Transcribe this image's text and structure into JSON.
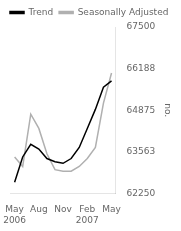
{
  "chart_data": {
    "type": "line",
    "y_label": "no.",
    "categories": [
      "May\n2006",
      null,
      null,
      "Aug",
      null,
      null,
      "Nov",
      null,
      null,
      "Feb\n2007",
      null,
      null,
      "May"
    ],
    "series": [
      {
        "name": "Trend",
        "color": "#000000",
        "values": [
          62600,
          63400,
          63800,
          63650,
          63350,
          63250,
          63200,
          63350,
          63700,
          64300,
          64900,
          65600,
          65800
        ]
      },
      {
        "name": "Seasonally Adjusted",
        "color": "#b0b0b0",
        "values": [
          63400,
          63100,
          64750,
          64300,
          63500,
          63000,
          62950,
          62950,
          63100,
          63350,
          63700,
          65100,
          66050
        ]
      }
    ],
    "ylim": [
      62250,
      67500
    ],
    "yticks": [
      62250,
      63563,
      64875,
      66188,
      67500
    ],
    "grid": false,
    "legend": "upper left"
  }
}
